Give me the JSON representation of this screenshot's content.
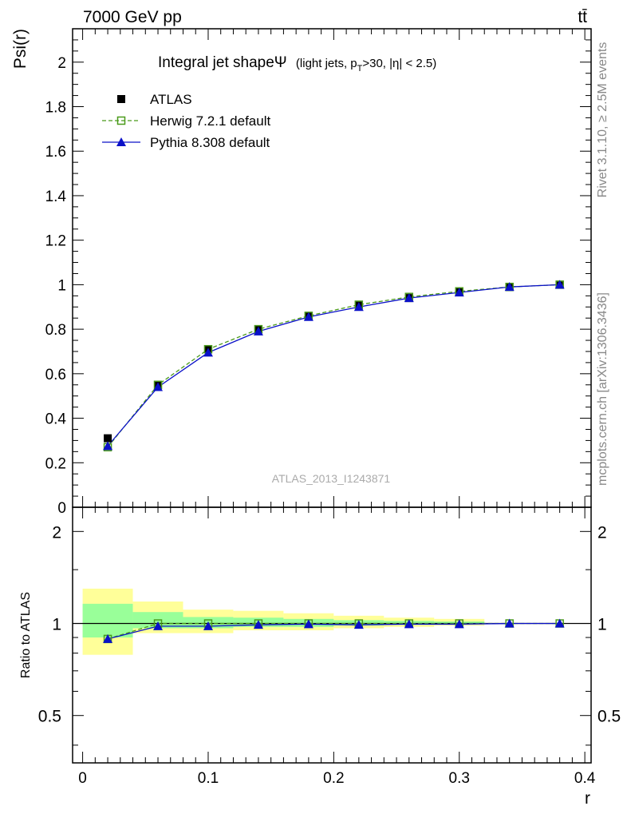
{
  "header": {
    "left": "7000 GeV pp",
    "right": "tt̄"
  },
  "side": {
    "rivet": "Rivet 3.1.10, ≥ 2.5M events",
    "mcplots": "mcplots.cern.ch [arXiv:1306.3436]"
  },
  "chart_data": [
    {
      "type": "scatter",
      "title_main": "Integral jet shapeΨ",
      "title_sub": "(light jets, p",
      "title_sub_idx": "T",
      "title_sub_tail": ">30, |η| < 2.5)",
      "ylabel": "Psi(r)",
      "watermark": "ATLAS_2013_I1243871",
      "xlim": [
        -0.008,
        0.405
      ],
      "ylim": [
        0,
        2.15
      ],
      "yticks": [
        {
          "v": 0,
          "label": "0"
        },
        {
          "v": 0.2,
          "label": "0.2"
        },
        {
          "v": 0.4,
          "label": "0.4"
        },
        {
          "v": 0.6,
          "label": "0.6"
        },
        {
          "v": 0.8,
          "label": "0.8"
        },
        {
          "v": 1.0,
          "label": "1"
        },
        {
          "v": 1.2,
          "label": "1.2"
        },
        {
          "v": 1.4,
          "label": "1.4"
        },
        {
          "v": 1.6,
          "label": "1.6"
        },
        {
          "v": 1.8,
          "label": "1.8"
        },
        {
          "v": 2.0,
          "label": "2"
        }
      ],
      "legend": [
        "ATLAS",
        "Herwig 7.2.1 default",
        "Pythia 8.308 default"
      ],
      "legend_position": "top-left",
      "x": [
        0.02,
        0.06,
        0.1,
        0.14,
        0.18,
        0.22,
        0.26,
        0.3,
        0.34,
        0.38
      ],
      "series": [
        {
          "name": "ATLAS",
          "color": "#000000",
          "marker": "square",
          "values": [
            0.31,
            0.55,
            0.71,
            0.8,
            0.86,
            0.91,
            0.94,
            0.97,
            0.99,
            1.0
          ]
        },
        {
          "name": "Herwig 7.2.1 default",
          "color": "#4a9a1a",
          "marker": "open-square",
          "line": "dashed",
          "values": [
            0.27,
            0.55,
            0.71,
            0.8,
            0.86,
            0.91,
            0.945,
            0.97,
            0.99,
            1.0
          ]
        },
        {
          "name": "Pythia 8.308 default",
          "color": "#0a10c8",
          "marker": "triangle",
          "line": "solid",
          "values": [
            0.275,
            0.54,
            0.695,
            0.79,
            0.855,
            0.9,
            0.94,
            0.965,
            0.99,
            1.0
          ]
        }
      ]
    },
    {
      "type": "scatter",
      "ylabel": "Ratio to ATLAS",
      "xlabel": "r",
      "scale": "log",
      "xlim": [
        -0.008,
        0.405
      ],
      "ylim": [
        0.35,
        2.4
      ],
      "yticks": [
        {
          "v": 0.5,
          "label": "0.5"
        },
        {
          "v": 1,
          "label": "1"
        },
        {
          "v": 2,
          "label": "2"
        }
      ],
      "xticks": [
        {
          "v": 0,
          "label": "0"
        },
        {
          "v": 0.1,
          "label": "0.1"
        },
        {
          "v": 0.2,
          "label": "0.2"
        },
        {
          "v": 0.3,
          "label": "0.3"
        },
        {
          "v": 0.4,
          "label": "0.4"
        }
      ],
      "bands": {
        "edges": [
          0.0,
          0.04,
          0.08,
          0.12,
          0.16,
          0.2,
          0.24,
          0.28,
          0.32
        ],
        "outer_lo": [
          0.79,
          0.93,
          0.93,
          0.95,
          0.95,
          0.965,
          0.975,
          0.985
        ],
        "outer_hi": [
          1.3,
          1.18,
          1.11,
          1.1,
          1.08,
          1.06,
          1.045,
          1.035
        ],
        "inner_lo": [
          0.9,
          0.965,
          0.965,
          0.975,
          0.975,
          0.985,
          0.99,
          0.995
        ],
        "inner_hi": [
          1.16,
          1.09,
          1.05,
          1.045,
          1.035,
          1.025,
          1.02,
          1.015
        ],
        "outer_color": "#ffff99",
        "inner_color": "#99ff99"
      },
      "x": [
        0.02,
        0.06,
        0.1,
        0.14,
        0.18,
        0.22,
        0.26,
        0.3,
        0.34,
        0.38
      ],
      "series": [
        {
          "name": "Herwig 7.2.1 default",
          "color": "#4a9a1a",
          "marker": "open-square",
          "line": "dashed",
          "values": [
            0.89,
            1.0,
            1.0,
            1.0,
            1.0,
            1.0,
            1.0,
            1.0,
            1.0,
            1.0
          ]
        },
        {
          "name": "Pythia 8.308 default",
          "color": "#0a10c8",
          "marker": "triangle",
          "line": "solid",
          "values": [
            0.89,
            0.98,
            0.98,
            0.99,
            0.995,
            0.99,
            0.995,
            0.995,
            1.0,
            1.0
          ]
        }
      ]
    }
  ]
}
